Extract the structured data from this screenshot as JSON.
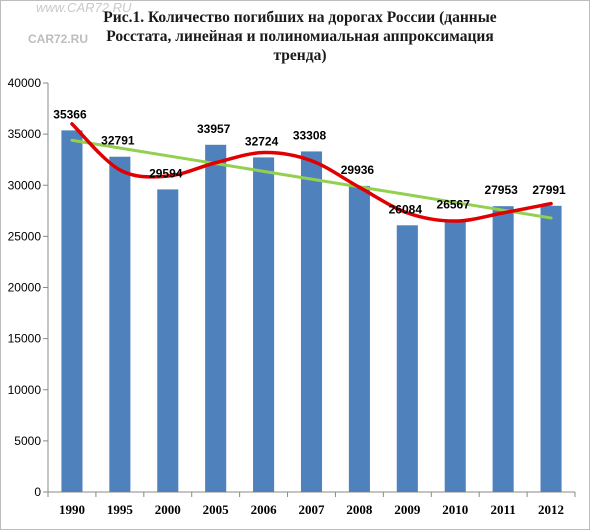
{
  "title_lines": [
    "Рис.1.  Количество погибших на дорогах России (данные",
    "Росстата, линейная  и полиномиальная аппроксимация",
    "тренда)"
  ],
  "watermark": {
    "top": "www.CAR72.RU",
    "mid": "CAR72.RU"
  },
  "chart_data": {
    "type": "bar",
    "title": "Рис.1.  Количество погибших на дорогах России (данные Росстата, линейная  и полиномиальная аппроксимация тренда)",
    "categories": [
      "1990",
      "1995",
      "2000",
      "2005",
      "2006",
      "2007",
      "2008",
      "2009",
      "2010",
      "2011",
      "2012"
    ],
    "values": [
      35366,
      32791,
      29594,
      33957,
      32724,
      33308,
      29936,
      26084,
      26567,
      27953,
      27991
    ],
    "value_labels": [
      "35366",
      "32791",
      "29594",
      "33957",
      "32724",
      "33308",
      "29936",
      "26084",
      "26567",
      "27953",
      "27991"
    ],
    "ylim": [
      0,
      40000
    ],
    "yticks": [
      0,
      5000,
      10000,
      15000,
      20000,
      25000,
      30000,
      35000,
      40000
    ],
    "grid": false,
    "legend": "none",
    "trendlines": [
      {
        "kind": "linear",
        "color": "#92d050",
        "values": [
          34400,
          33640,
          32880,
          32120,
          31360,
          30600,
          29840,
          29080,
          28320,
          27560,
          26800
        ]
      },
      {
        "kind": "polynomial",
        "color": "#e00000",
        "values": [
          36000,
          31500,
          30900,
          32200,
          33200,
          32400,
          29800,
          27300,
          26500,
          27300,
          28200
        ]
      }
    ],
    "colors": {
      "bar": "#4f81bd",
      "axis": "#888888"
    }
  }
}
